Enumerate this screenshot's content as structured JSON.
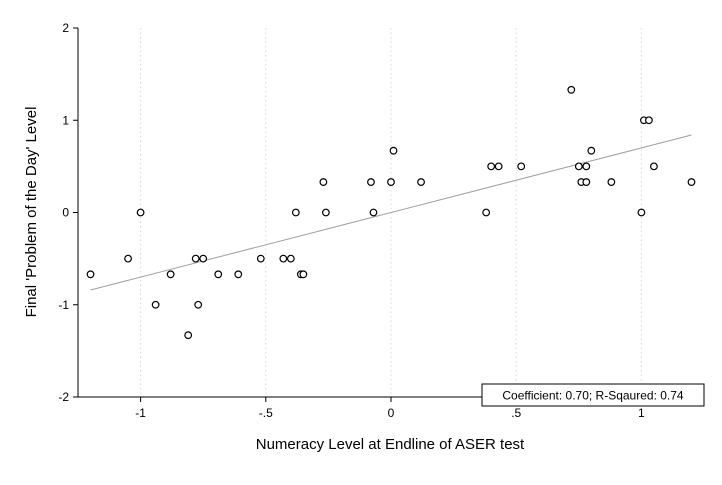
{
  "chart_data": {
    "type": "scatter",
    "xlabel": "Numeracy Level at Endline of ASER test",
    "ylabel": "Final 'Problem of the Day' Level",
    "xlim": [
      -1.25,
      1.25
    ],
    "ylim": [
      -2,
      2
    ],
    "x_ticks": [
      -1,
      -0.5,
      0,
      0.5,
      1
    ],
    "x_tick_labels": [
      "-1",
      "-.5",
      "0",
      ".5",
      "1"
    ],
    "y_ticks": [
      -2,
      -1,
      0,
      1,
      2
    ],
    "y_tick_labels": [
      "-2",
      "-1",
      "0",
      "1",
      "2"
    ],
    "grid": "dotted vertical at x ticks",
    "annotation": "Coefficient: 0.70; R-Sqaured: 0.74",
    "annotation_position": "bottom-right",
    "fit_line": {
      "x": [
        -1.2,
        1.2
      ],
      "y": [
        -0.84,
        0.84
      ]
    },
    "points": [
      {
        "x": -1.2,
        "y": -0.67
      },
      {
        "x": -1.05,
        "y": -0.5
      },
      {
        "x": -1.0,
        "y": 0
      },
      {
        "x": -0.94,
        "y": -1
      },
      {
        "x": -0.88,
        "y": -0.67
      },
      {
        "x": -0.81,
        "y": -1.33
      },
      {
        "x": -0.78,
        "y": -0.5
      },
      {
        "x": -0.77,
        "y": -1
      },
      {
        "x": -0.75,
        "y": -0.5
      },
      {
        "x": -0.69,
        "y": -0.67
      },
      {
        "x": -0.61,
        "y": -0.67
      },
      {
        "x": -0.52,
        "y": -0.5
      },
      {
        "x": -0.43,
        "y": -0.5
      },
      {
        "x": -0.4,
        "y": -0.5
      },
      {
        "x": -0.38,
        "y": 0
      },
      {
        "x": -0.36,
        "y": -0.67
      },
      {
        "x": -0.35,
        "y": -0.67
      },
      {
        "x": -0.27,
        "y": 0.33
      },
      {
        "x": -0.26,
        "y": 0
      },
      {
        "x": -0.08,
        "y": 0.33
      },
      {
        "x": -0.07,
        "y": 0
      },
      {
        "x": 0.0,
        "y": 0.33
      },
      {
        "x": 0.01,
        "y": 0.67
      },
      {
        "x": 0.12,
        "y": 0.33
      },
      {
        "x": 0.38,
        "y": 0
      },
      {
        "x": 0.4,
        "y": 0.5
      },
      {
        "x": 0.43,
        "y": 0.5
      },
      {
        "x": 0.52,
        "y": 0.5
      },
      {
        "x": 0.72,
        "y": 1.33
      },
      {
        "x": 0.75,
        "y": 0.5
      },
      {
        "x": 0.76,
        "y": 0.33
      },
      {
        "x": 0.78,
        "y": 0.33
      },
      {
        "x": 0.78,
        "y": 0.5
      },
      {
        "x": 0.8,
        "y": 0.67
      },
      {
        "x": 0.88,
        "y": 0.33
      },
      {
        "x": 1.0,
        "y": 0
      },
      {
        "x": 1.01,
        "y": 1
      },
      {
        "x": 1.03,
        "y": 1
      },
      {
        "x": 1.05,
        "y": 0.5
      },
      {
        "x": 1.2,
        "y": 0.33
      }
    ],
    "colors": {
      "marker": "#000000",
      "fit_line": "#a0a0a0",
      "grid": "#d8d8d8"
    }
  }
}
